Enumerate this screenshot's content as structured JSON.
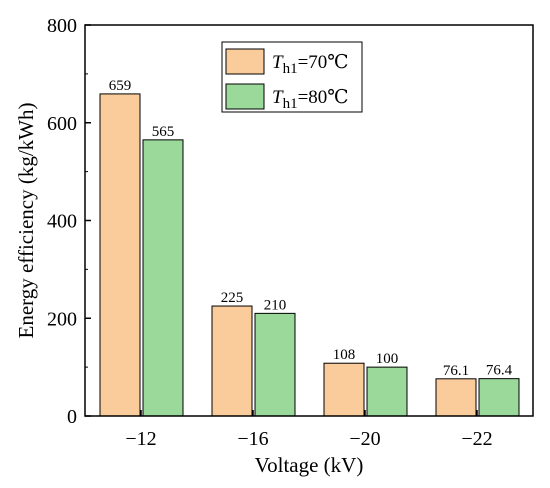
{
  "chart_data": {
    "type": "bar",
    "title": "",
    "xlabel": "Voltage (kV)",
    "ylabel": "Energy efficiency (kg/kWh)",
    "categories": [
      "−12",
      "−16",
      "−20",
      "−22"
    ],
    "ylim": [
      0,
      800
    ],
    "yticks": [
      0,
      200,
      400,
      600,
      800
    ],
    "grid": false,
    "legend_position": "top-center",
    "series": [
      {
        "name": "T",
        "name_sub": "h1",
        "name_suffix": "=70℃",
        "color": "#FACB9B",
        "values": [
          659,
          225,
          108,
          76.1
        ],
        "labels": [
          "659",
          "225",
          "108",
          "76.1"
        ]
      },
      {
        "name": "T",
        "name_sub": "h1",
        "name_suffix": "=80℃",
        "color": "#9AD99A",
        "values": [
          565,
          210,
          100,
          76.4
        ],
        "labels": [
          "565",
          "210",
          "100",
          "76.4"
        ]
      }
    ]
  }
}
